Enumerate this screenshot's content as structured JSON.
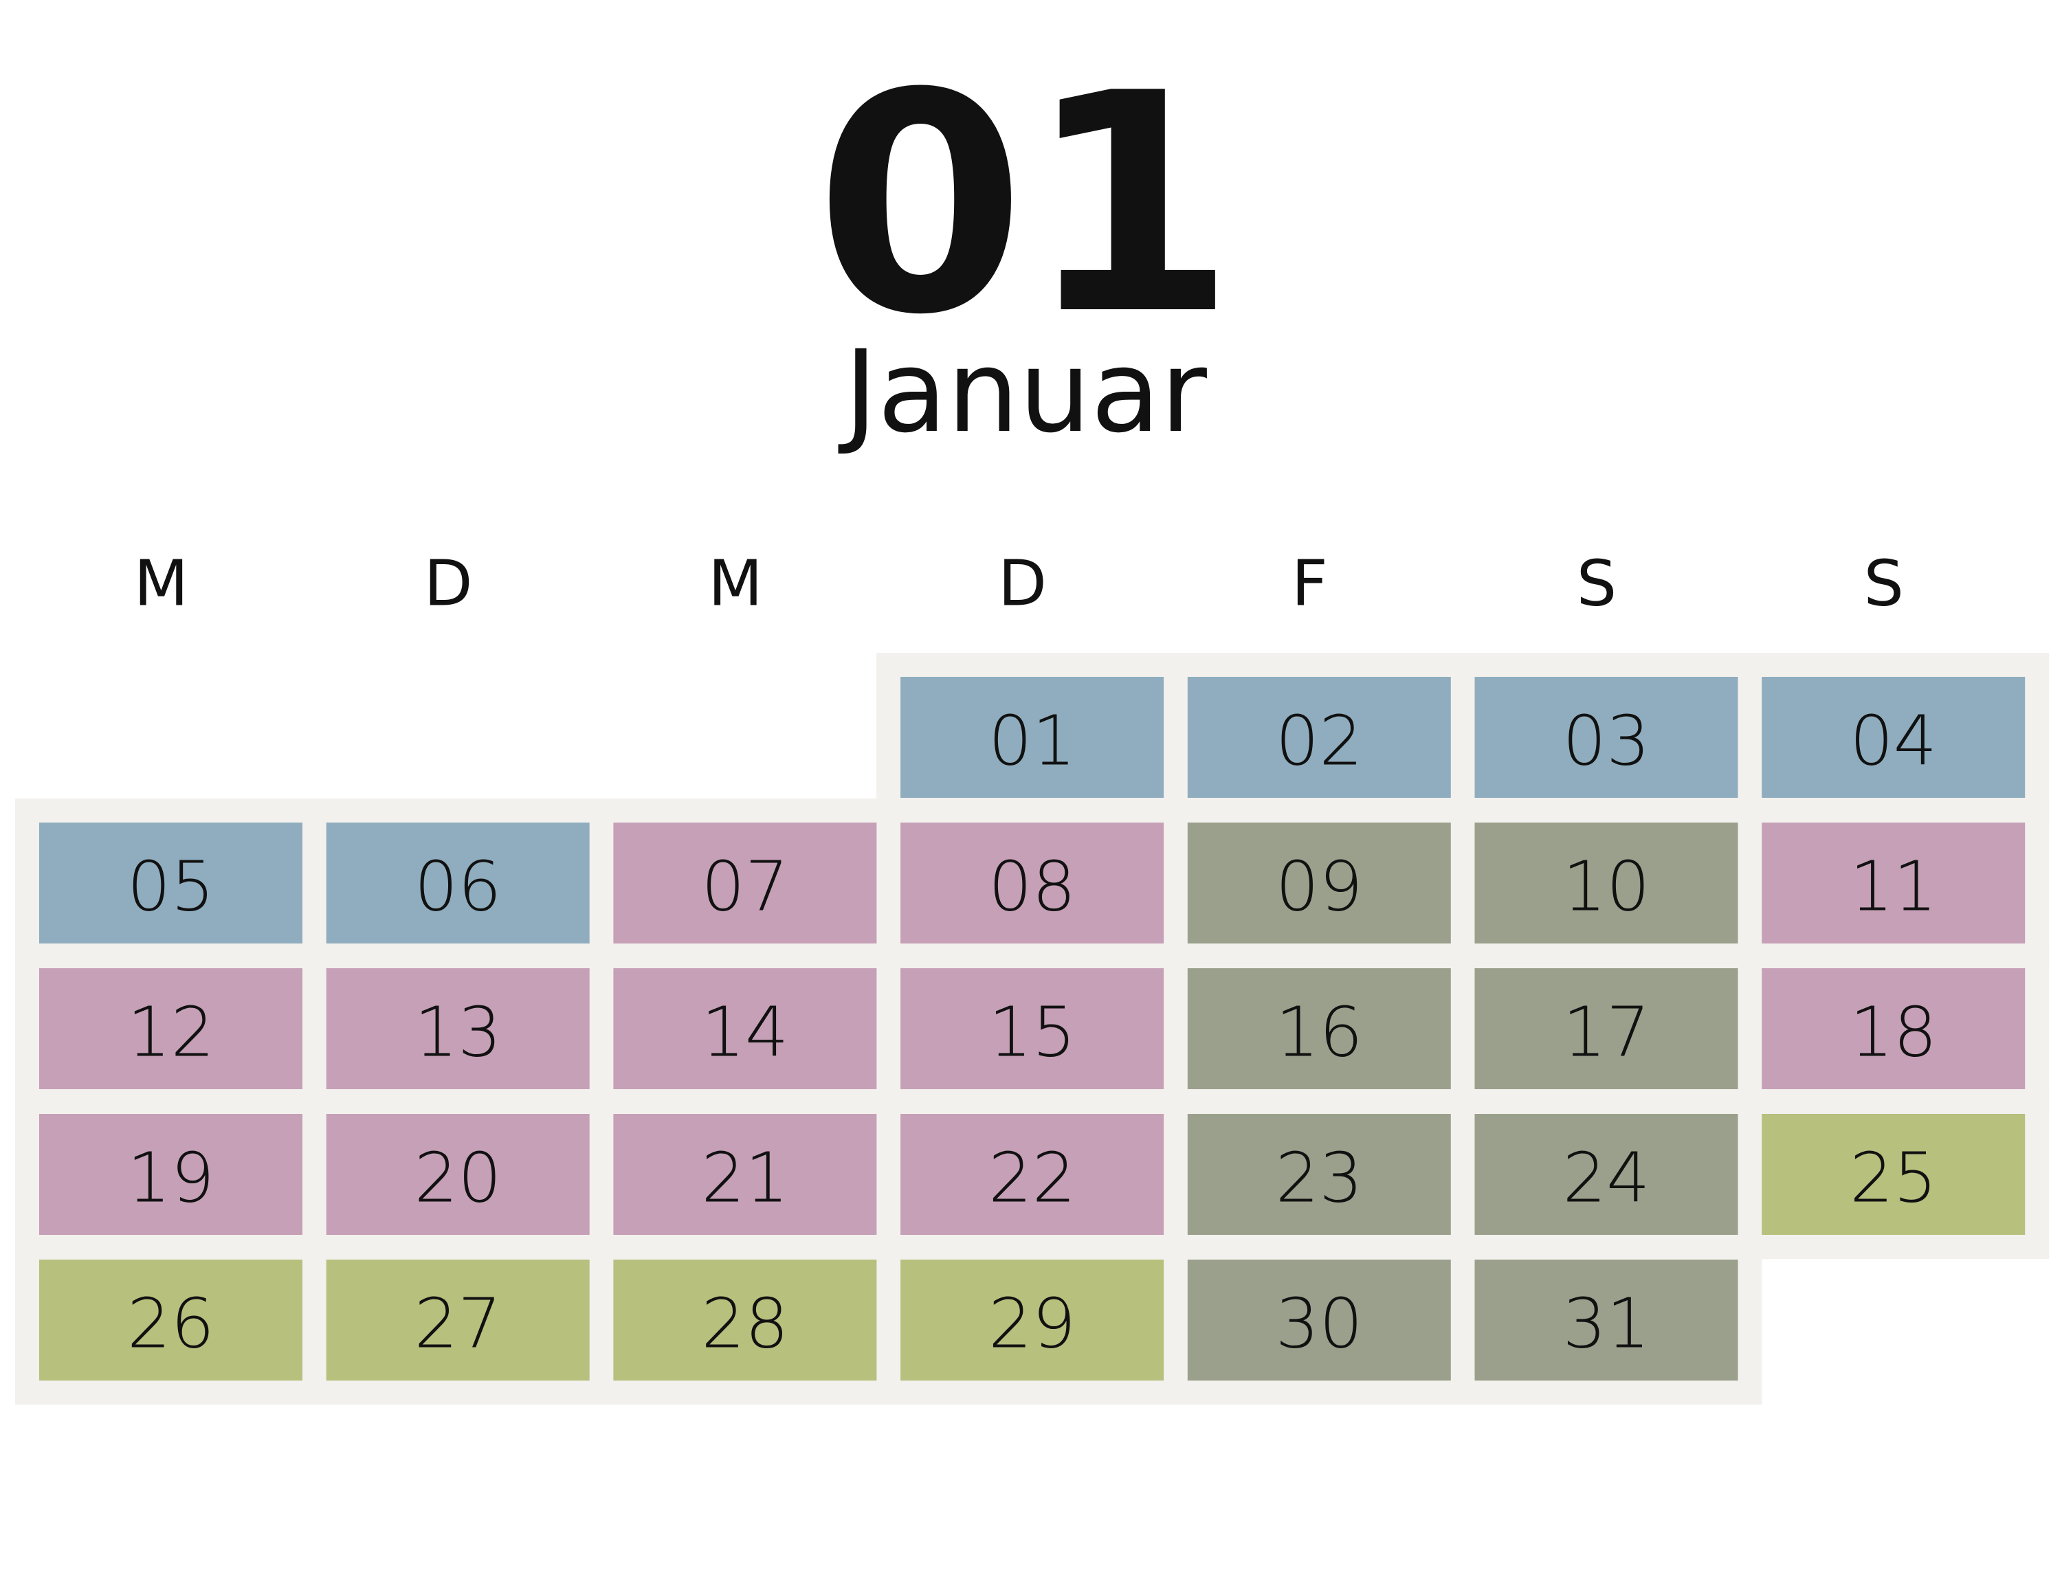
{
  "header": {
    "number": "01",
    "month": "Januar"
  },
  "weekdays": [
    "M",
    "D",
    "M",
    "D",
    "F",
    "S",
    "S"
  ],
  "weeks": [
    [
      null,
      null,
      null,
      {
        "day": "01",
        "color": "#8fadbe"
      },
      {
        "day": "02",
        "color": "#8fadbe"
      },
      {
        "day": "03",
        "color": "#8fadbe"
      },
      {
        "day": "04",
        "color": "#8fadbe"
      }
    ],
    [
      {
        "day": "05",
        "color": "#8fadbe"
      },
      {
        "day": "06",
        "color": "#8fadbe"
      },
      {
        "day": "07",
        "color": "#c6a0b7"
      },
      {
        "day": "08",
        "color": "#c6a0b7"
      },
      {
        "day": "09",
        "color": "#9ba08c"
      },
      {
        "day": "10",
        "color": "#9ba08c"
      },
      {
        "day": "11",
        "color": "#c6a0b7"
      }
    ],
    [
      {
        "day": "12",
        "color": "#c6a0b7"
      },
      {
        "day": "13",
        "color": "#c6a0b7"
      },
      {
        "day": "14",
        "color": "#c6a0b7"
      },
      {
        "day": "15",
        "color": "#c6a0b7"
      },
      {
        "day": "16",
        "color": "#9ba08c"
      },
      {
        "day": "17",
        "color": "#9ba08c"
      },
      {
        "day": "18",
        "color": "#c6a0b7"
      }
    ],
    [
      {
        "day": "19",
        "color": "#c6a0b7"
      },
      {
        "day": "20",
        "color": "#c6a0b7"
      },
      {
        "day": "21",
        "color": "#c6a0b7"
      },
      {
        "day": "22",
        "color": "#c6a0b7"
      },
      {
        "day": "23",
        "color": "#9ba08c"
      },
      {
        "day": "24",
        "color": "#9ba08c"
      },
      {
        "day": "25",
        "color": "#b7c07d"
      }
    ],
    [
      {
        "day": "26",
        "color": "#b7c07d"
      },
      {
        "day": "27",
        "color": "#b7c07d"
      },
      {
        "day": "28",
        "color": "#b7c07d"
      },
      {
        "day": "29",
        "color": "#b7c07d"
      },
      {
        "day": "30",
        "color": "#9ba08c"
      },
      {
        "day": "31",
        "color": "#9ba08c"
      },
      null
    ]
  ]
}
